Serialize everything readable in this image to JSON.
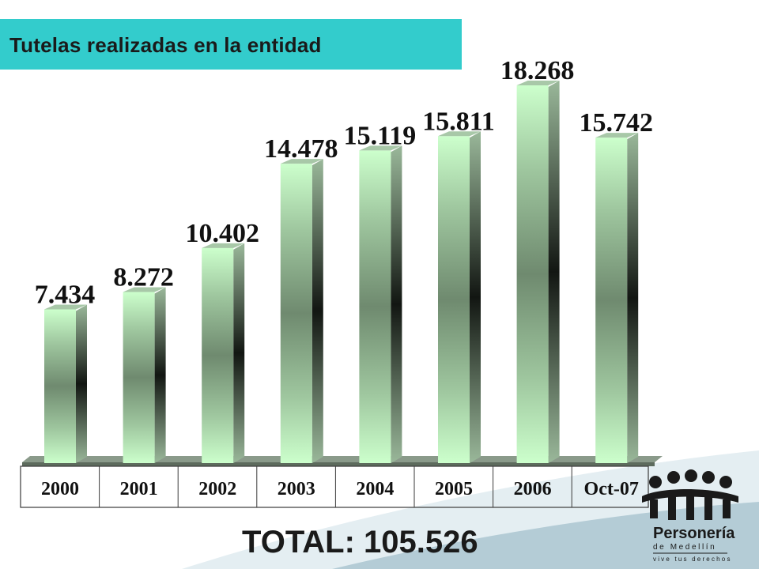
{
  "slide": {
    "title": "Tutelas realizadas en la entidad",
    "total": "TOTAL: 105.526"
  },
  "logo": {
    "line1": "Personería",
    "line2": "de Medellín",
    "line3": "vive tus derechos"
  },
  "colors": {
    "title_bg": "#33cccc",
    "bar_light": "#ccffcc",
    "bar_dark": "#1a1f1a",
    "bar_mid": "#6f8a6f",
    "floor": "#7a8a7a"
  },
  "chart_data": {
    "type": "bar",
    "title": "",
    "xlabel": "",
    "ylabel": "",
    "categories": [
      "2000",
      "2001",
      "2002",
      "2003",
      "2004",
      "2005",
      "2006",
      "Oct-07"
    ],
    "values": [
      7434,
      8272,
      10402,
      14478,
      15119,
      15811,
      18268,
      15742
    ],
    "value_labels": [
      "7.434",
      "8.272",
      "10.402",
      "14.478",
      "15.119",
      "15.811",
      "18.268",
      "15.742"
    ],
    "ylim": [
      0,
      18268
    ],
    "grid": false,
    "legend": "none"
  }
}
